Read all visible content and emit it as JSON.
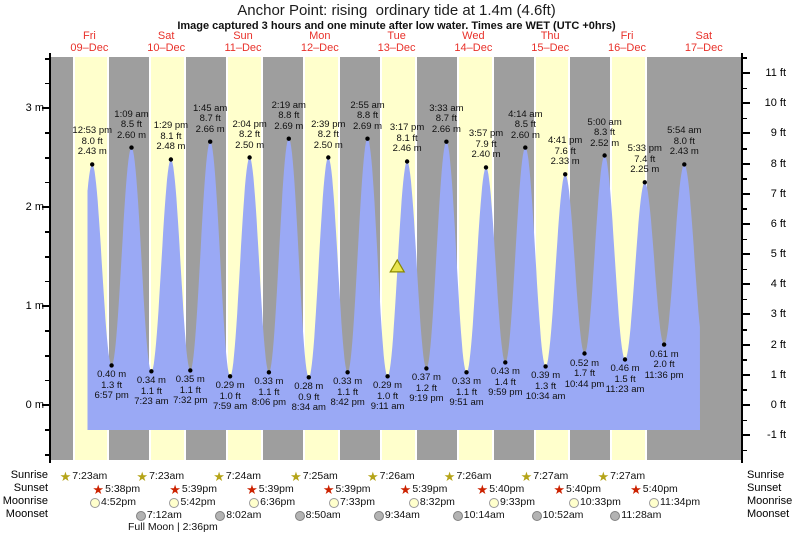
{
  "title": "Anchor Point: rising  ordinary tide at 1.4m (4.6ft)",
  "subtitle": "Image captured 3 hours and one minute after low water. Times are WET (UTC +0hrs)",
  "chart_data": {
    "type": "area",
    "title": "Anchor Point: rising  ordinary tide at 1.4m (4.6ft)",
    "categories": [
      {
        "name": "Fri",
        "date": "09–Dec"
      },
      {
        "name": "Sat",
        "date": "10–Dec"
      },
      {
        "name": "Sun",
        "date": "11–Dec"
      },
      {
        "name": "Mon",
        "date": "12–Dec"
      },
      {
        "name": "Tue",
        "date": "13–Dec"
      },
      {
        "name": "Wed",
        "date": "14–Dec"
      },
      {
        "name": "Thu",
        "date": "15–Dec"
      },
      {
        "name": "Fri",
        "date": "16–Dec"
      },
      {
        "name": "Sat",
        "date": "17–Dec"
      }
    ],
    "y_axis_left": {
      "unit": "m",
      "major_ticks": [
        0,
        1,
        2,
        3
      ],
      "minor_step": 0.25,
      "range": [
        -0.55,
        3.5
      ]
    },
    "y_axis_right": {
      "unit": "ft",
      "major_ticks": [
        -1,
        0,
        1,
        2,
        3,
        4,
        5,
        6,
        7,
        8,
        9,
        10,
        11
      ],
      "minor_step": 0.5,
      "range": [
        -1.8,
        11.5
      ]
    },
    "extremes": [
      {
        "day": 0,
        "time": "12:53 pm",
        "ft": 8.0,
        "m": 2.43,
        "type": "high"
      },
      {
        "day": 0,
        "time": "6:57 pm",
        "ft": 1.3,
        "m": 0.4,
        "type": "low"
      },
      {
        "day": 1,
        "time": "1:09 am",
        "ft": 8.5,
        "m": 2.6,
        "type": "high"
      },
      {
        "day": 1,
        "time": "7:23 am",
        "ft": 1.1,
        "m": 0.34,
        "type": "low"
      },
      {
        "day": 1,
        "time": "1:29 pm",
        "ft": 8.1,
        "m": 2.48,
        "type": "high"
      },
      {
        "day": 1,
        "time": "7:32 pm",
        "ft": 1.1,
        "m": 0.35,
        "type": "low"
      },
      {
        "day": 2,
        "time": "1:45 am",
        "ft": 8.7,
        "m": 2.66,
        "type": "high"
      },
      {
        "day": 2,
        "time": "7:59 am",
        "ft": 1.0,
        "m": 0.29,
        "type": "low"
      },
      {
        "day": 2,
        "time": "2:04 pm",
        "ft": 8.2,
        "m": 2.5,
        "type": "high"
      },
      {
        "day": 2,
        "time": "8:06 pm",
        "ft": 1.1,
        "m": 0.33,
        "type": "low"
      },
      {
        "day": 3,
        "time": "2:19 am",
        "ft": 8.8,
        "m": 2.69,
        "type": "high"
      },
      {
        "day": 3,
        "time": "8:34 am",
        "ft": 0.9,
        "m": 0.28,
        "type": "low"
      },
      {
        "day": 3,
        "time": "2:39 pm",
        "ft": 8.2,
        "m": 2.5,
        "type": "high"
      },
      {
        "day": 3,
        "time": "8:42 pm",
        "ft": 1.1,
        "m": 0.33,
        "type": "low"
      },
      {
        "day": 4,
        "time": "2:55 am",
        "ft": 8.8,
        "m": 2.69,
        "type": "high"
      },
      {
        "day": 4,
        "time": "9:11 am",
        "ft": 1.0,
        "m": 0.29,
        "type": "low"
      },
      {
        "day": 4,
        "time": "3:17 pm",
        "ft": 8.1,
        "m": 2.46,
        "type": "high"
      },
      {
        "day": 4,
        "time": "9:19 pm",
        "ft": 1.2,
        "m": 0.37,
        "type": "low"
      },
      {
        "day": 5,
        "time": "3:33 am",
        "ft": 8.7,
        "m": 2.66,
        "type": "high"
      },
      {
        "day": 5,
        "time": "9:51 am",
        "ft": 1.1,
        "m": 0.33,
        "type": "low"
      },
      {
        "day": 5,
        "time": "3:57 pm",
        "ft": 7.9,
        "m": 2.4,
        "type": "high"
      },
      {
        "day": 5,
        "time": "9:59 pm",
        "ft": 1.4,
        "m": 0.43,
        "type": "low"
      },
      {
        "day": 6,
        "time": "4:14 am",
        "ft": 8.5,
        "m": 2.6,
        "type": "high"
      },
      {
        "day": 6,
        "time": "10:34 am",
        "ft": 1.3,
        "m": 0.39,
        "type": "low"
      },
      {
        "day": 6,
        "time": "4:41 pm",
        "ft": 7.6,
        "m": 2.33,
        "type": "high"
      },
      {
        "day": 6,
        "time": "10:44 pm",
        "ft": 1.7,
        "m": 0.52,
        "type": "low"
      },
      {
        "day": 7,
        "time": "5:00 am",
        "ft": 8.3,
        "m": 2.52,
        "type": "high"
      },
      {
        "day": 7,
        "time": "11:23 am",
        "ft": 1.5,
        "m": 0.46,
        "type": "low"
      },
      {
        "day": 7,
        "time": "5:33 pm",
        "ft": 7.4,
        "m": 2.25,
        "type": "high"
      },
      {
        "day": 7,
        "time": "11:36 pm",
        "ft": 2.0,
        "m": 0.61,
        "type": "low"
      },
      {
        "day": 8,
        "time": "5:54 am",
        "ft": 8.0,
        "m": 2.43,
        "type": "high"
      }
    ],
    "padding_points": [
      {
        "day": 0,
        "hour": 6.58,
        "m": 0.35
      },
      {
        "day": 8,
        "hour": 12.25,
        "m": 0.55
      }
    ],
    "current_level_marker": {
      "m": 1.4,
      "day": 4,
      "hour": 12.2
    },
    "colors": {
      "tide_fill": "#9aa9f5",
      "night_band": "#9e9e9e",
      "day_band": "#ffffcc",
      "band_gap": "#ffffff",
      "day_label": "#e8312a",
      "marker_fill": "#e8e44e",
      "marker_stroke": "#8a8a00",
      "extreme_dot": "#000000"
    }
  },
  "astro": {
    "rows": [
      {
        "label": "Sunrise",
        "icon": "sunrise-star-icon",
        "shape": "star",
        "color": "#b5a418",
        "events": [
          {
            "day": 0,
            "time": "7:23am"
          },
          {
            "day": 1,
            "time": "7:23am"
          },
          {
            "day": 2,
            "time": "7:24am"
          },
          {
            "day": 3,
            "time": "7:25am"
          },
          {
            "day": 4,
            "time": "7:26am"
          },
          {
            "day": 5,
            "time": "7:26am"
          },
          {
            "day": 6,
            "time": "7:27am"
          },
          {
            "day": 7,
            "time": "7:27am"
          }
        ]
      },
      {
        "label": "Sunset",
        "icon": "sunset-star-icon",
        "shape": "star",
        "color": "#cc2200",
        "events": [
          {
            "day": 0,
            "time": "5:38pm"
          },
          {
            "day": 1,
            "time": "5:39pm"
          },
          {
            "day": 2,
            "time": "5:39pm"
          },
          {
            "day": 3,
            "time": "5:39pm"
          },
          {
            "day": 4,
            "time": "5:39pm"
          },
          {
            "day": 5,
            "time": "5:40pm"
          },
          {
            "day": 6,
            "time": "5:40pm"
          },
          {
            "day": 7,
            "time": "5:40pm"
          }
        ]
      },
      {
        "label": "Moonrise",
        "icon": "moonrise-circle-icon",
        "shape": "circle",
        "fill": "#ffffcc",
        "stroke": "#999999",
        "events": [
          {
            "day": 0,
            "time": "4:52pm"
          },
          {
            "day": 1,
            "time": "5:42pm"
          },
          {
            "day": 2,
            "time": "6:36pm"
          },
          {
            "day": 3,
            "time": "7:33pm"
          },
          {
            "day": 4,
            "time": "8:32pm"
          },
          {
            "day": 5,
            "time": "9:33pm"
          },
          {
            "day": 6,
            "time": "10:33pm"
          },
          {
            "day": 7,
            "time": "11:34pm"
          }
        ]
      },
      {
        "label": "Moonset",
        "icon": "moonset-circle-icon",
        "shape": "circle",
        "fill": "#b3b3b3",
        "stroke": "#808080",
        "events": [
          {
            "day": 1,
            "time": "7:12am"
          },
          {
            "day": 2,
            "time": "8:02am"
          },
          {
            "day": 3,
            "time": "8:50am"
          },
          {
            "day": 4,
            "time": "9:34am"
          },
          {
            "day": 5,
            "time": "10:14am"
          },
          {
            "day": 6,
            "time": "10:52am"
          },
          {
            "day": 7,
            "time": "11:28am"
          }
        ]
      }
    ],
    "full_moon": "Full Moon | 2:36pm"
  }
}
